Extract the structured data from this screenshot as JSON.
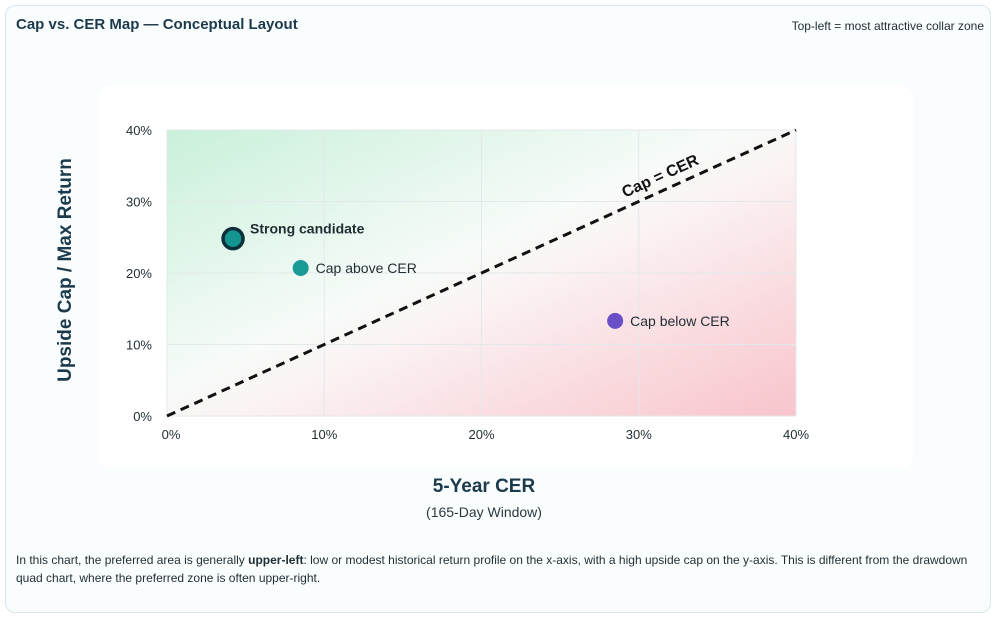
{
  "header": {
    "title": "Cap vs. CER Map — Conceptual Layout",
    "note": "Top-left = most attractive collar zone"
  },
  "chart_data": {
    "type": "scatter",
    "title": "",
    "xlabel": "5-Year CER",
    "xlabel_sub": "(165-Day Window)",
    "ylabel": "Upside Cap / Max Return",
    "xlim": [
      0,
      40
    ],
    "ylim": [
      0,
      40
    ],
    "x_ticks": [
      "0%",
      "10%",
      "20%",
      "30%",
      "40%"
    ],
    "y_ticks": [
      "0%",
      "10%",
      "20%",
      "30%",
      "40%"
    ],
    "grid": true,
    "reference_line": {
      "label": "Cap = CER",
      "from": [
        0,
        0
      ],
      "to": [
        40,
        40
      ],
      "style": "dashed"
    },
    "background_zones": [
      {
        "zone": "upper-left",
        "color": "#c9f0da"
      },
      {
        "zone": "lower-right",
        "color": "#f8c4cb"
      }
    ],
    "points": [
      {
        "label": "Strong candidate",
        "x": 4.2,
        "y": 24.8,
        "color": "#13968f",
        "emphasis": true
      },
      {
        "label": "Cap above CER",
        "x": 8.5,
        "y": 20.7,
        "color": "#1a9a95",
        "emphasis": false
      },
      {
        "label": "Cap below CER",
        "x": 28.5,
        "y": 13.3,
        "color": "#6a4fc7",
        "emphasis": false
      }
    ]
  },
  "footnote": {
    "before": "In this chart, the preferred area is generally ",
    "bold": "upper-left",
    "after": ": low or modest historical return profile on the x-axis, with a high upside cap on the y-axis. This is different from the drawdown quad chart, where the preferred zone is often upper-right."
  },
  "colors": {
    "title": "#1b3a4b",
    "grid": "#e3e8ea",
    "reference_line": "#111111"
  }
}
